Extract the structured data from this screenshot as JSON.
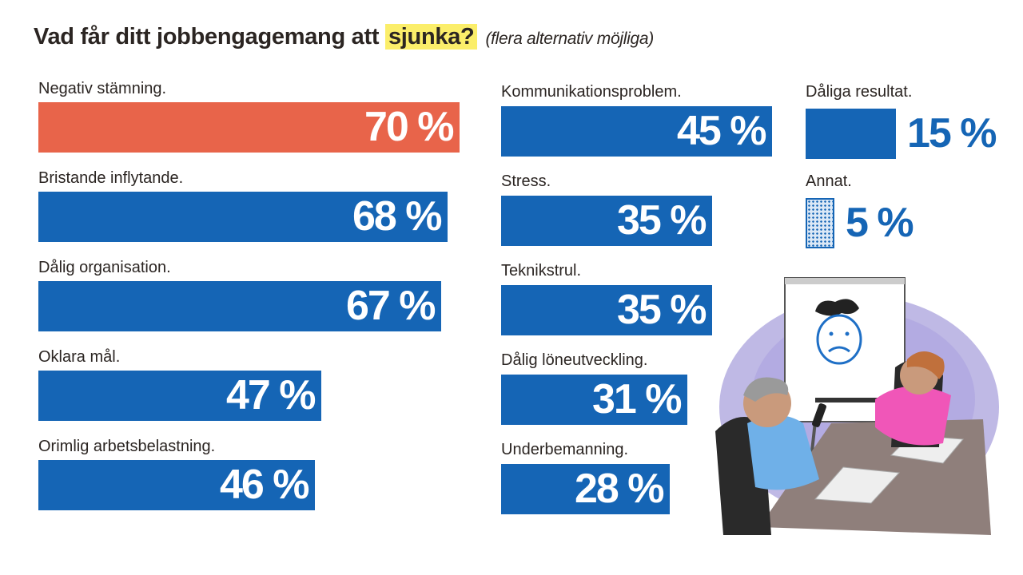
{
  "title": {
    "main": "Vad får ditt jobbengagemang att",
    "highlight": "sjunka?",
    "subtitle": "(flera alternativ möjliga)"
  },
  "colors": {
    "primary": "#1565b5",
    "accent": "#e8644a",
    "highlight": "#fbee6a",
    "text": "#2b2522"
  },
  "chart_data": {
    "type": "bar",
    "orientation": "horizontal",
    "title": "Vad får ditt jobbengagemang att sjunka? (flera alternativ möjliga)",
    "unit": "%",
    "xlim": [
      0,
      100
    ],
    "categories": [
      "Negativ stämning.",
      "Bristande inflytande.",
      "Dålig organisation.",
      "Oklara mål.",
      "Orimlig arbetsbelastning.",
      "Kommunikationsproblem.",
      "Stress.",
      "Teknikstrul.",
      "Dålig löneutveckling.",
      "Underbemanning.",
      "Dåliga resultat.",
      "Annat."
    ],
    "values": [
      70,
      68,
      67,
      47,
      46,
      45,
      35,
      35,
      31,
      28,
      15,
      5
    ],
    "value_labels": [
      "70 %",
      "68 %",
      "67 %",
      "47 %",
      "46 %",
      "45 %",
      "35 %",
      "35 %",
      "31 %",
      "28 %",
      "15 %",
      "5 %"
    ],
    "highlighted_index": 0
  }
}
